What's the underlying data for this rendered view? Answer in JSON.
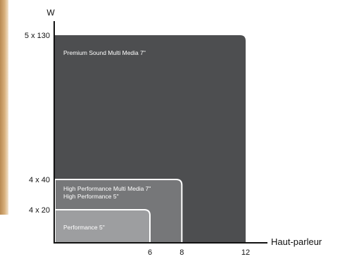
{
  "chart_data": {
    "type": "area",
    "title": "",
    "ylabel": "W",
    "xlabel": "Haut-parleur",
    "xlim": [
      0,
      12
    ],
    "x_ticks": [
      "6",
      "8",
      "12"
    ],
    "y_ticks": [
      "4 x 20",
      "4 x 40",
      "5 x 130"
    ],
    "series": [
      {
        "lines": [
          "Premium Sound Multi Media 7\""
        ],
        "x_max": 12,
        "y_level": "5 x 130",
        "color": "#4d4e50"
      },
      {
        "lines": [
          "High Performance Multi Media 7\"",
          "High Performance 5\""
        ],
        "x_max": 8,
        "y_level": "4 x 40",
        "color": "#767779"
      },
      {
        "lines": [
          "Performance 5\""
        ],
        "x_max": 6,
        "y_level": "4 x 20",
        "color": "#9d9ea0"
      }
    ]
  }
}
